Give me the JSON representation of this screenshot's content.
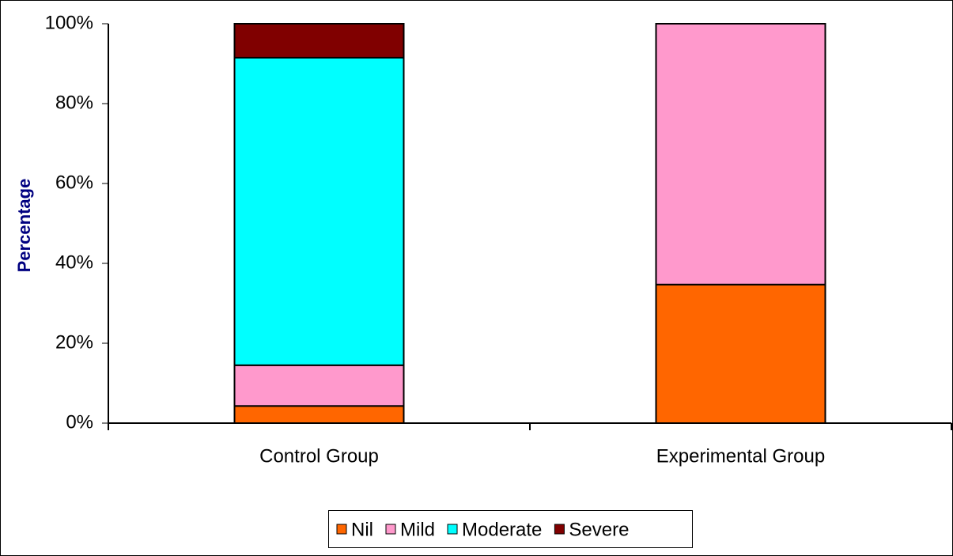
{
  "chart_data": {
    "type": "stacked-bar",
    "y_label": "Percentage",
    "categories": [
      "Control Group",
      "Experimental Group"
    ],
    "series": [
      {
        "name": "Nil",
        "color": "#ff6600",
        "values": [
          4.3,
          34.7
        ]
      },
      {
        "name": "Mild",
        "color": "#ff99cc",
        "values": [
          10.2,
          65.3
        ]
      },
      {
        "name": "Moderate",
        "color": "#00ffff",
        "values": [
          77,
          0
        ]
      },
      {
        "name": "Severe",
        "color": "#800000",
        "values": [
          8.5,
          0
        ]
      }
    ],
    "ylim": [
      0,
      100
    ],
    "yticks": [
      {
        "value": 0,
        "label": "0%"
      },
      {
        "value": 20,
        "label": "20%"
      },
      {
        "value": 40,
        "label": "40%"
      },
      {
        "value": 60,
        "label": "60%"
      },
      {
        "value": 80,
        "label": "80%"
      },
      {
        "value": 100,
        "label": "100%"
      }
    ],
    "grid": false,
    "legend": "bottom"
  }
}
